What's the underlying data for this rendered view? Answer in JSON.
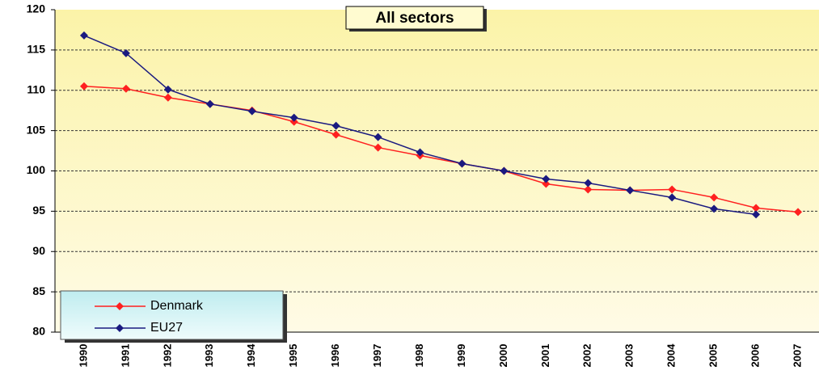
{
  "chart_data": {
    "type": "line",
    "title": "All sectors",
    "categories": [
      "1990",
      "1991",
      "1992",
      "1993",
      "1994",
      "1995",
      "1996",
      "1997",
      "1998",
      "1999",
      "2000",
      "2001",
      "2002",
      "2003",
      "2004",
      "2005",
      "2006",
      "2007"
    ],
    "series": [
      {
        "name": "Denmark",
        "color": "#ff2020",
        "values": [
          110.5,
          110.2,
          109.1,
          108.3,
          107.5,
          106.1,
          104.5,
          102.9,
          101.9,
          100.9,
          100.0,
          98.4,
          97.7,
          97.6,
          97.7,
          96.7,
          95.4,
          94.9
        ]
      },
      {
        "name": "EU27",
        "color": "#1a1a80",
        "values": [
          116.8,
          114.6,
          110.1,
          108.3,
          107.4,
          106.6,
          105.6,
          104.2,
          102.3,
          100.9,
          100.0,
          99.0,
          98.5,
          97.6,
          96.7,
          95.3,
          94.6,
          null
        ]
      }
    ],
    "ylim": [
      80,
      120
    ],
    "yticks": [
      80,
      85,
      90,
      95,
      100,
      105,
      110,
      115,
      120
    ],
    "grid": true,
    "legend": "bottom-left"
  }
}
